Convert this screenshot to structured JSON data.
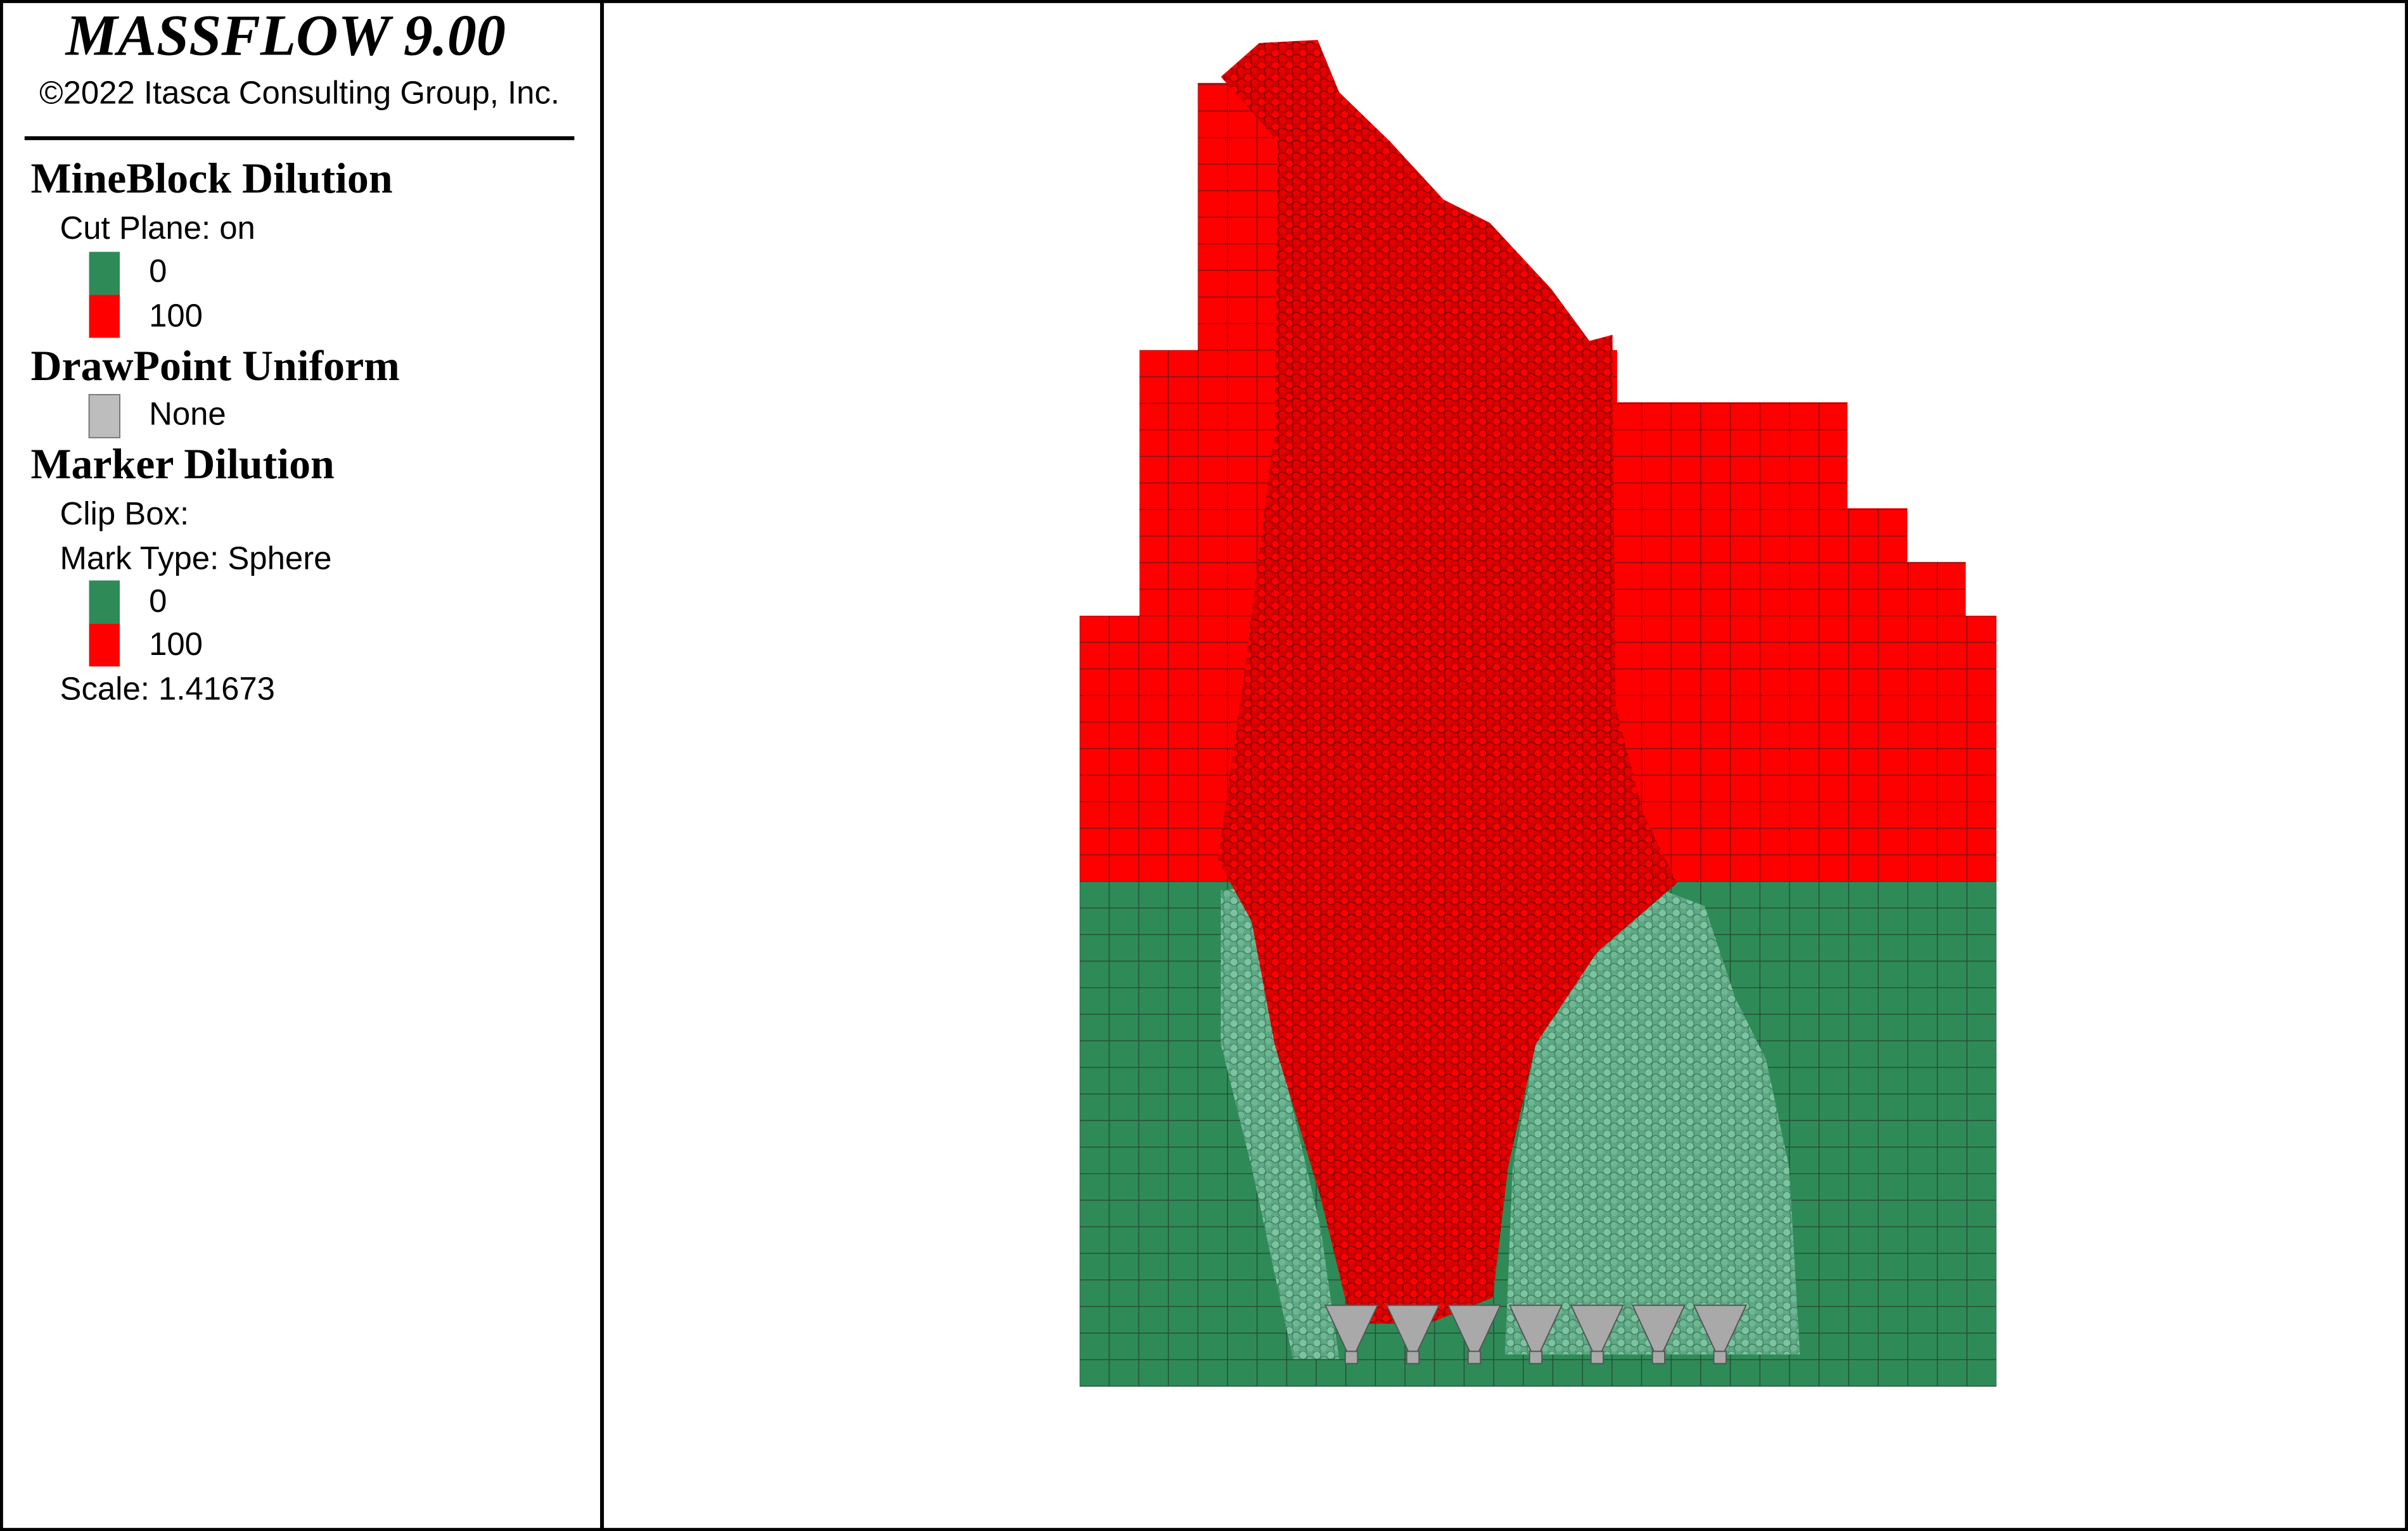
{
  "header": {
    "title": "MASSFLOW 9.00",
    "copyright": "©2022 Itasca Consulting Group, Inc."
  },
  "legend": {
    "mineblock": {
      "title": "MineBlock Dilution",
      "cut_plane": "Cut Plane: on",
      "keys": [
        {
          "label": 0,
          "color": "#2e8b57"
        },
        {
          "label": 100,
          "color": "#ff0000"
        }
      ]
    },
    "drawpoint": {
      "title": "DrawPoint Uniform",
      "keys": [
        {
          "label": "None",
          "color": "#bdbdbd"
        }
      ]
    },
    "marker": {
      "title": "Marker Dilution",
      "clip_box": "Clip Box:",
      "mark_type": "Mark Type: Sphere",
      "keys": [
        {
          "label": 0,
          "color": "#2e8b57"
        },
        {
          "label": 100,
          "color": "#ff0000"
        }
      ],
      "scale": "Scale: 1.41673"
    }
  }
}
